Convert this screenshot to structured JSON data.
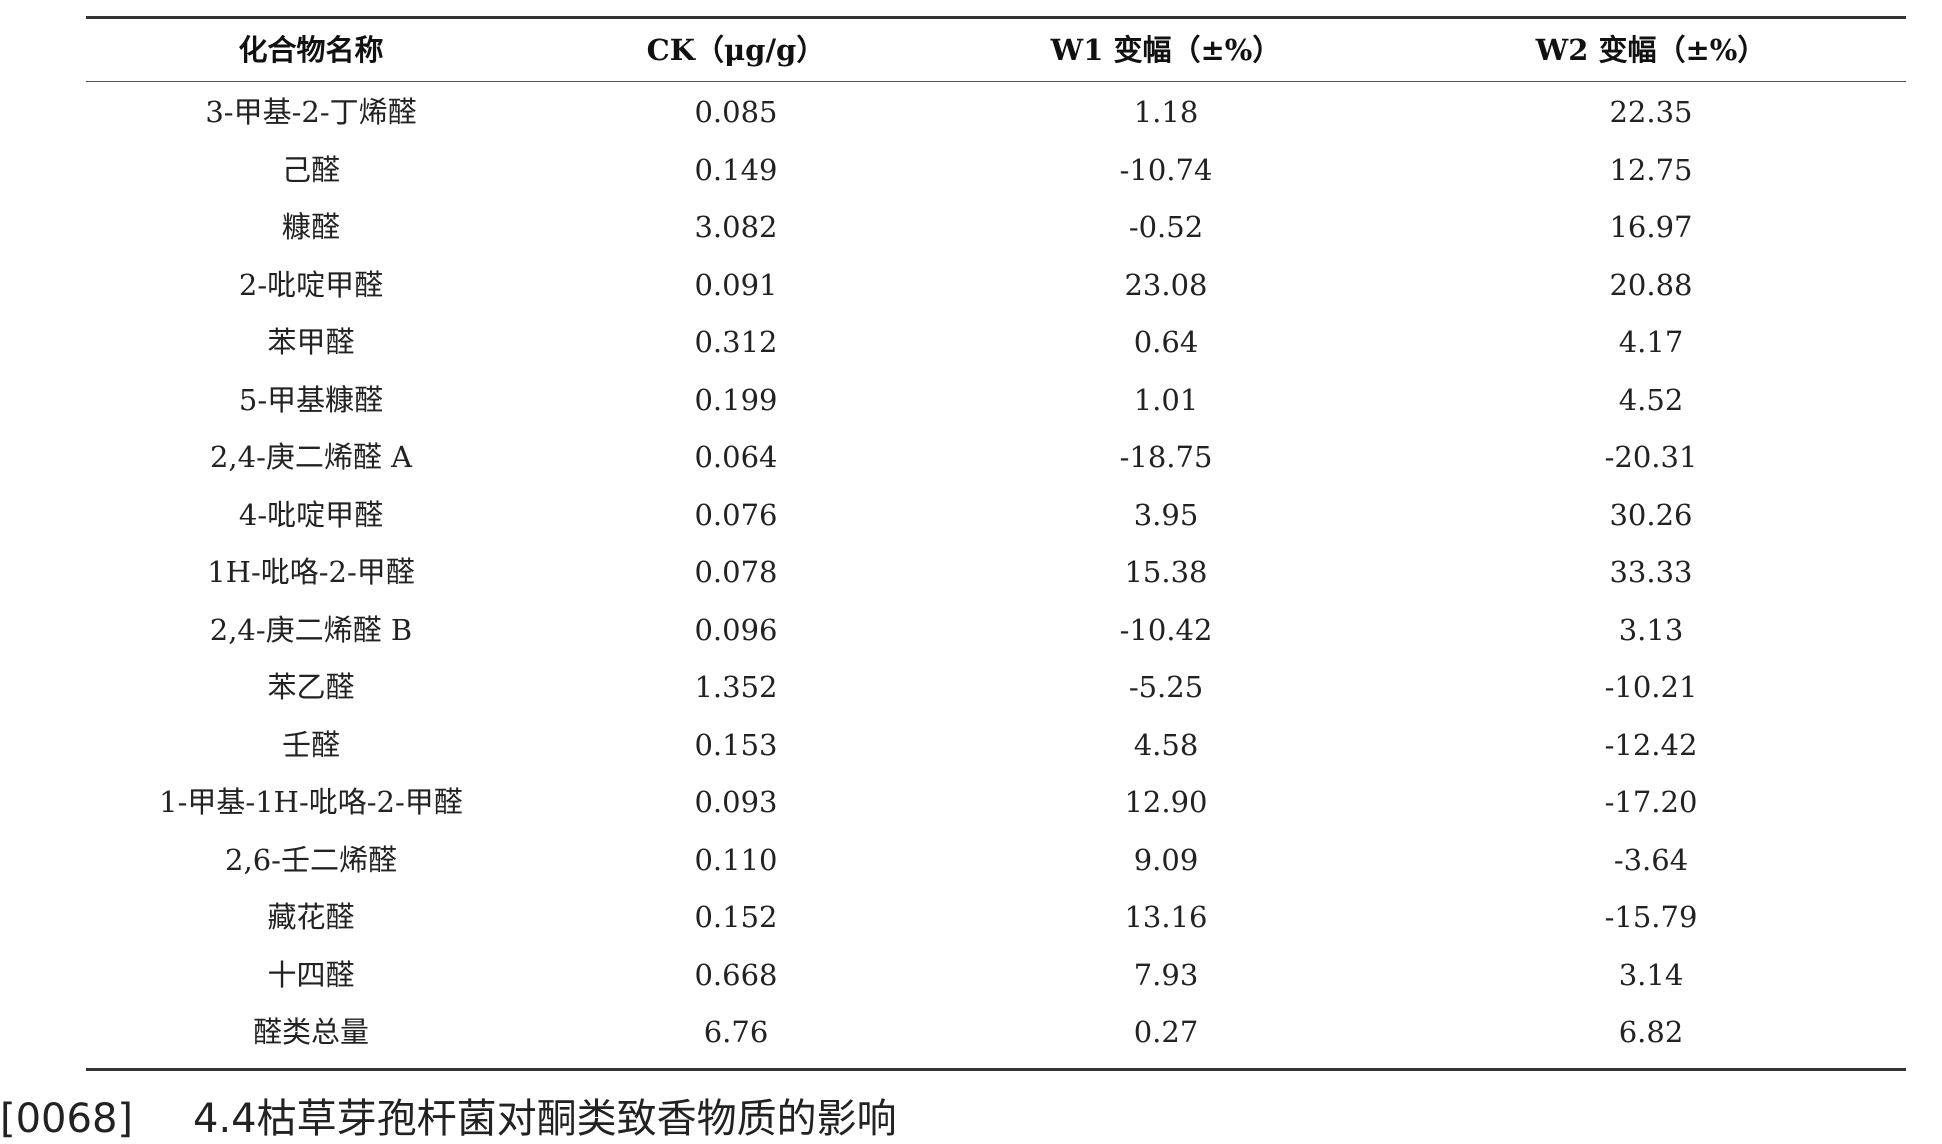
{
  "table": {
    "headers": [
      "化合物名称",
      "CK（μg/g）",
      "W1 变幅（±%）",
      "W2 变幅（±%）"
    ],
    "rows": [
      [
        "3-甲基-2-丁烯醛",
        "0.085",
        "1.18",
        "22.35"
      ],
      [
        "己醛",
        "0.149",
        "-10.74",
        "12.75"
      ],
      [
        "糠醛",
        "3.082",
        "-0.52",
        "16.97"
      ],
      [
        "2-吡啶甲醛",
        "0.091",
        "23.08",
        "20.88"
      ],
      [
        "苯甲醛",
        "0.312",
        "0.64",
        "4.17"
      ],
      [
        "5-甲基糠醛",
        "0.199",
        "1.01",
        "4.52"
      ],
      [
        "2,4-庚二烯醛 A",
        "0.064",
        "-18.75",
        "-20.31"
      ],
      [
        "4-吡啶甲醛",
        "0.076",
        "3.95",
        "30.26"
      ],
      [
        "1H-吡咯-2-甲醛",
        "0.078",
        "15.38",
        "33.33"
      ],
      [
        "2,4-庚二烯醛 B",
        "0.096",
        "-10.42",
        "3.13"
      ],
      [
        "苯乙醛",
        "1.352",
        "-5.25",
        "-10.21"
      ],
      [
        "壬醛",
        "0.153",
        "4.58",
        "-12.42"
      ],
      [
        "1-甲基-1H-吡咯-2-甲醛",
        "0.093",
        "12.90",
        "-17.20"
      ],
      [
        "2,6-壬二烯醛",
        "0.110",
        "9.09",
        "-3.64"
      ],
      [
        "藏花醛",
        "0.152",
        "13.16",
        "-15.79"
      ],
      [
        "十四醛",
        "0.668",
        "7.93",
        "3.14"
      ],
      [
        "醛类总量",
        "6.76",
        "0.27",
        "6.82"
      ]
    ]
  },
  "paragraph": {
    "number": "[0068]",
    "text": "4.4枯草芽孢杆菌对酮类致香物质的影响"
  }
}
